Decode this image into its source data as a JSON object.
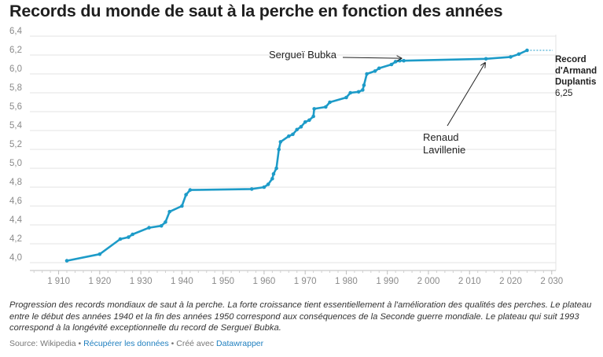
{
  "title": "Records du monde de saut à la perche en fonction des années",
  "chart_data": {
    "type": "line",
    "title": "Records du monde de saut à la perche en fonction des années",
    "xlim": [
      1903,
      2031
    ],
    "ylim": [
      3.95,
      6.4
    ],
    "grid": true,
    "x_ticks": [
      1910,
      1920,
      1930,
      1940,
      1950,
      1960,
      1970,
      1980,
      1990,
      2000,
      2010,
      2020,
      2030
    ],
    "x_tick_labels": [
      "1 910",
      "1 920",
      "1 930",
      "1 940",
      "1 950",
      "1 960",
      "1 970",
      "1 980",
      "1 990",
      "2 000",
      "2 010",
      "2 020",
      "2 030"
    ],
    "y_ticks": [
      4.0,
      4.2,
      4.4,
      4.6,
      4.8,
      5.0,
      5.2,
      5.4,
      5.6,
      5.8,
      6.0,
      6.2,
      6.4
    ],
    "y_tick_labels": [
      "4,0",
      "4,2",
      "4,4",
      "4,6",
      "4,8",
      "5,0",
      "5,2",
      "5,4",
      "5,6",
      "5,8",
      "6,0",
      "6,2",
      "6,4"
    ],
    "color": "#1d9bc8",
    "series": [
      {
        "x": [
          1912,
          1920,
          1925,
          1927,
          1928,
          1932,
          1935,
          1936,
          1937,
          1940,
          1941,
          1942,
          1957,
          1960,
          1961,
          1962,
          1962.3,
          1963,
          1963.6,
          1964,
          1966,
          1967,
          1968,
          1969,
          1970,
          1971,
          1972,
          1972.2,
          1975,
          1976,
          1980,
          1981,
          1983,
          1984,
          1984.3,
          1985,
          1987,
          1988,
          1991,
          1992,
          1993,
          1994,
          2014,
          2020,
          2022,
          2024
        ],
        "y": [
          4.02,
          4.09,
          4.25,
          4.27,
          4.3,
          4.37,
          4.39,
          4.43,
          4.54,
          4.6,
          4.72,
          4.77,
          4.78,
          4.8,
          4.83,
          4.89,
          4.94,
          5.0,
          5.2,
          5.28,
          5.34,
          5.36,
          5.41,
          5.44,
          5.49,
          5.51,
          5.55,
          5.63,
          5.65,
          5.7,
          5.75,
          5.8,
          5.81,
          5.83,
          5.88,
          6.0,
          6.03,
          6.06,
          6.1,
          6.13,
          6.14,
          6.14,
          6.16,
          6.18,
          6.21,
          6.25
        ]
      }
    ],
    "annotations": [
      {
        "text": "Sergueï Bubka",
        "x": 1994,
        "y": 6.14
      },
      {
        "text_lines": [
          "Renaud",
          "Lavillenie"
        ],
        "x": 2014,
        "y": 6.16
      },
      {
        "text_lines": [
          "Record",
          "d'Armand",
          "Duplantis"
        ],
        "value_label": "6,25",
        "x": 2024,
        "y": 6.25
      }
    ]
  },
  "description": "Progression des records mondiaux de saut à la perche. La forte croissance tient essentiellement à l'amélioration des qualités des perches. Le plateau entre le début des années 1940 et la fin des années 1950 correspond aux conséquences de la Seconde guerre mondiale. Le plateau qui suit 1993 correspond à la longévité exceptionnelle du record de Sergueï Bubka.",
  "footer": {
    "source": "Source: Wikipedia",
    "separator": " • ",
    "download_link": "Récupérer les données",
    "created_with": "Créé avec",
    "tool_link": "Datawrapper"
  }
}
